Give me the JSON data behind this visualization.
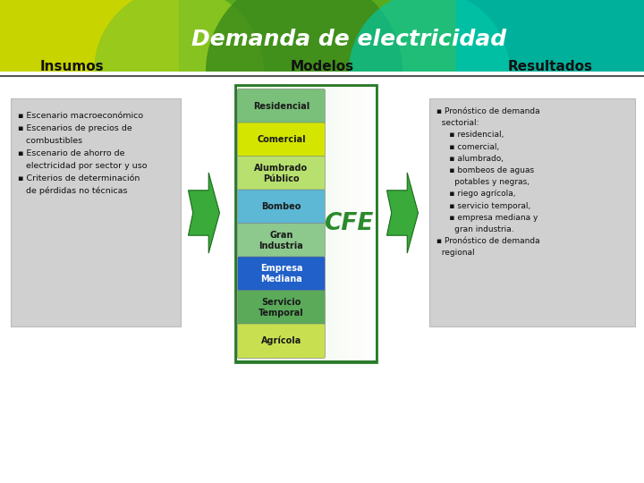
{
  "title": "Demanda de electricidad",
  "title_fontsize": 18,
  "title_color": "#ffffff",
  "col_headers": [
    "Insumos",
    "Modelos",
    "Resultados"
  ],
  "col_header_fontsize": 11,
  "insumos_lines": [
    "▪ Escenario macroeconómico",
    "▪ Escenarios de precios de",
    "   combustibles",
    "▪ Escenario de ahorro de",
    "   electricidad por sector y uso",
    "▪ Criterios de determinación",
    "   de pérdidas no técnicas"
  ],
  "modelos_items": [
    {
      "label": "Residencial",
      "color": "#7abf7a",
      "text_color": "#1a1a1a"
    },
    {
      "label": "Comercial",
      "color": "#d4e600",
      "text_color": "#1a1a1a"
    },
    {
      "label": "Alumbrado\nPúblico",
      "color": "#b8e06e",
      "text_color": "#1a1a1a"
    },
    {
      "label": "Bombeo",
      "color": "#5cb8d4",
      "text_color": "#1a1a1a"
    },
    {
      "label": "Gran\nIndustria",
      "color": "#8dc88d",
      "text_color": "#1a1a1a"
    },
    {
      "label": "Empresa\nMediana",
      "color": "#2060c8",
      "text_color": "#ffffff"
    },
    {
      "label": "Servicio\nTemporal",
      "color": "#5aaa5a",
      "text_color": "#1a1a1a"
    },
    {
      "label": "Agrícola",
      "color": "#c8e050",
      "text_color": "#1a1a1a"
    }
  ],
  "cfe_color": "#2a8a2a",
  "resultados_lines": [
    "▪ Pronóstico de demanda",
    "  sectorial:",
    "     ▪ residencial,",
    "     ▪ comercial,",
    "     ▪ alumbrado,",
    "     ▪ bombeos de aguas",
    "       potables y negras,",
    "     ▪ riego agrícola,",
    "     ▪ servicio temporal,",
    "     ▪ empresa mediana y",
    "       gran industria.",
    "▪ Pronóstico de demanda",
    "  regional"
  ],
  "header_yellow": "#c8d400",
  "header_green": "#5aaa20",
  "header_teal": "#00b09b",
  "arrow_color": "#3aaa3a",
  "arrow_dark": "#1a6a1a",
  "box_bg": "#d0d0d0",
  "box_edge": "#bbbbbb",
  "modelos_border": "#2a7a2a",
  "modelos_inner_light": "#e8f5e0",
  "line_color": "#555555"
}
